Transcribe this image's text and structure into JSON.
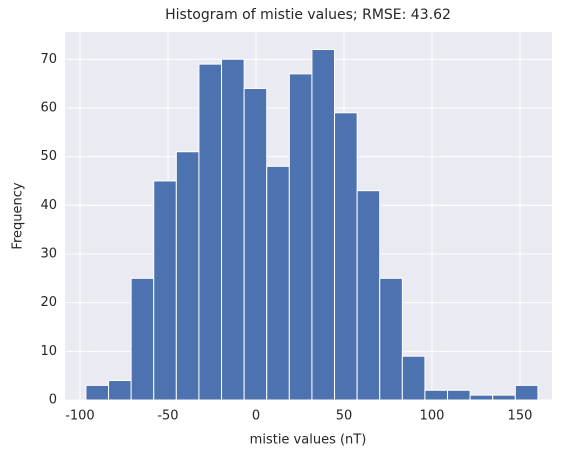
{
  "chart_data": {
    "type": "histogram",
    "title": "Histogram of mistie values; RMSE: 43.62",
    "xlabel": "mistie values (nT)",
    "ylabel": "Frequency",
    "bins": [
      -96.6,
      -83.76,
      -70.92,
      -58.08,
      -45.24,
      -32.4,
      -19.56,
      -6.72,
      6.12,
      18.96,
      31.8,
      44.64,
      57.48,
      70.32,
      83.16,
      96.0,
      108.84,
      121.68,
      134.52,
      147.36,
      160.2
    ],
    "values": [
      3,
      4,
      25,
      45,
      51,
      69,
      70,
      64,
      48,
      67,
      72,
      59,
      43,
      25,
      9,
      2,
      2,
      1,
      1,
      3
    ],
    "color": "#4c72b0",
    "xlim": [
      -108.5,
      168.2
    ],
    "xticks": [
      -100,
      -50,
      0,
      50,
      100,
      150
    ],
    "ylim": [
      0,
      75.6
    ],
    "yticks": [
      0,
      10,
      20,
      30,
      40,
      50,
      60,
      70
    ],
    "grid": true
  }
}
